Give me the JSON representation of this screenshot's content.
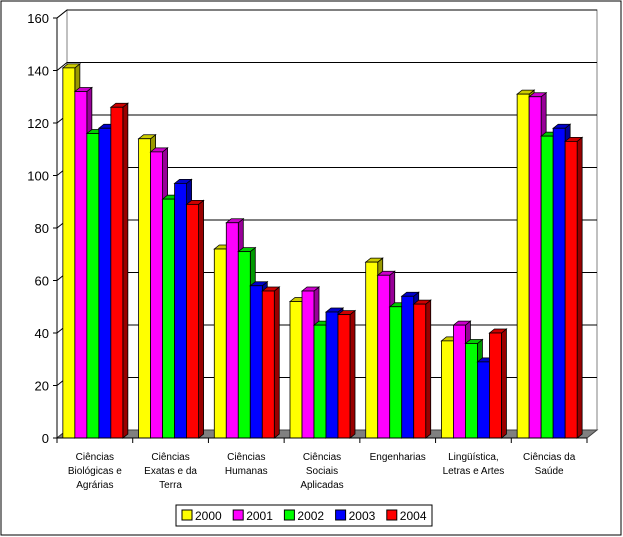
{
  "chart_data": {
    "type": "bar",
    "categories": [
      [
        "Ciências",
        "Biológicas e",
        "Agrárias"
      ],
      [
        "Ciências",
        "Exatas e da",
        "Terra"
      ],
      [
        "Ciências",
        "Humanas"
      ],
      [
        "Ciências",
        "Sociais",
        "Aplicadas"
      ],
      [
        "Engenharias"
      ],
      [
        "Lingüística,",
        "Letras e Artes"
      ],
      [
        "Ciências da",
        "Saúde"
      ]
    ],
    "series": [
      {
        "name": "2000",
        "color": "#ffff00",
        "values": [
          141,
          114,
          72,
          52,
          67,
          37,
          131
        ]
      },
      {
        "name": "2001",
        "color": "#ff00ff",
        "values": [
          132,
          109,
          82,
          56,
          62,
          43,
          130
        ]
      },
      {
        "name": "2002",
        "color": "#00ff00",
        "values": [
          116,
          91,
          71,
          43,
          50,
          36,
          115
        ]
      },
      {
        "name": "2003",
        "color": "#0000ff",
        "values": [
          118,
          97,
          58,
          48,
          54,
          29,
          118
        ]
      },
      {
        "name": "2004",
        "color": "#ff0000",
        "values": [
          126,
          89,
          56,
          47,
          51,
          40,
          113
        ]
      }
    ],
    "ylim": [
      0,
      160
    ],
    "yticks": [
      "0",
      "20",
      "40",
      "60",
      "80",
      "100",
      "120",
      "140",
      "160"
    ],
    "grid": true,
    "legend_position": "bottom"
  }
}
